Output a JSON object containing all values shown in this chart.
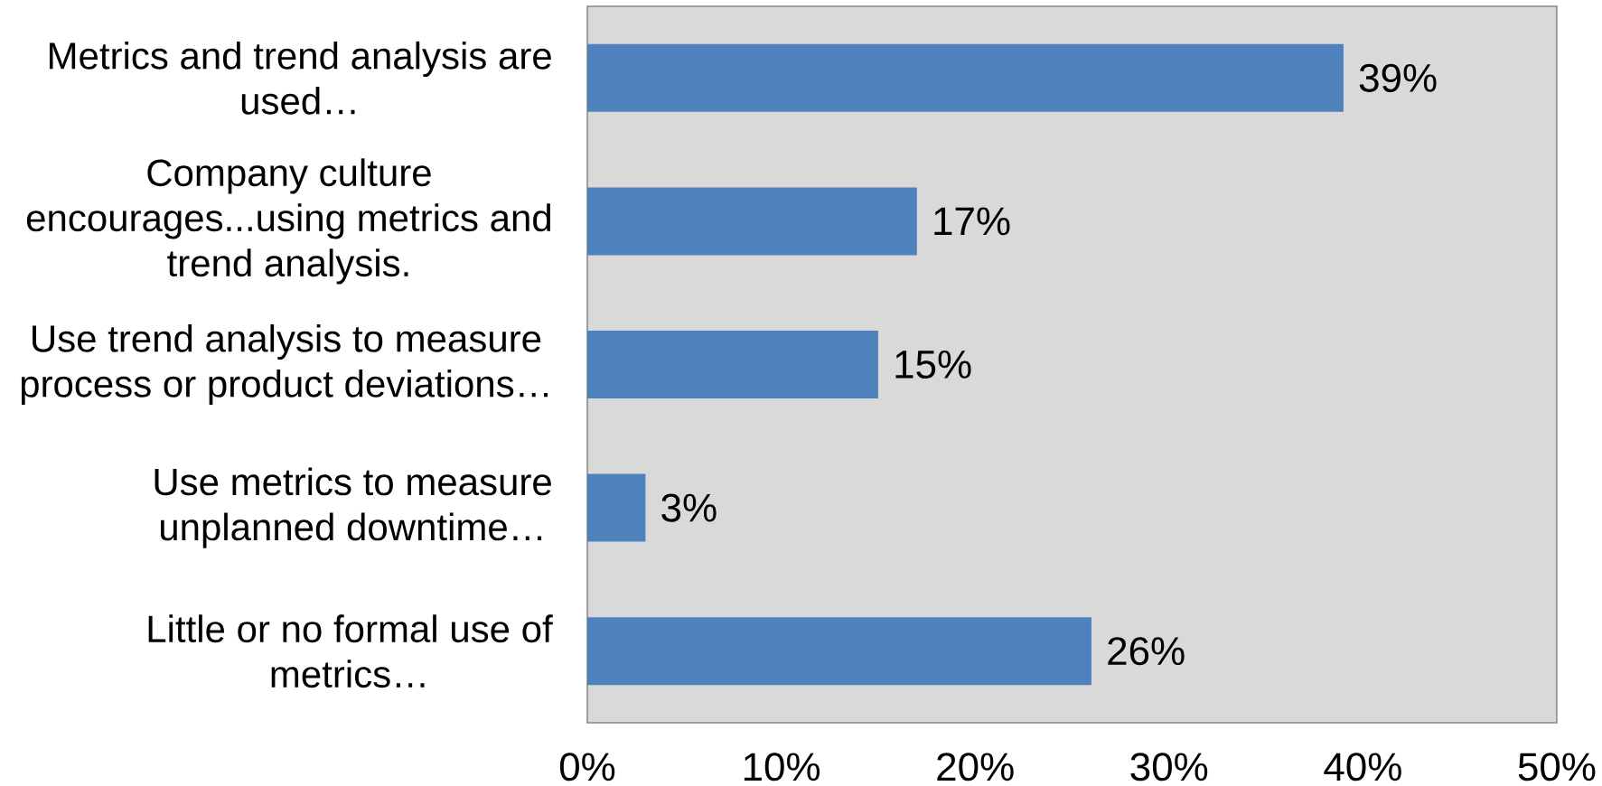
{
  "chart_data": {
    "type": "bar",
    "orientation": "horizontal",
    "categories": [
      "Metrics and trend analysis are used…",
      "Company culture encourages...using metrics and trend analysis.",
      "Use trend analysis to measure process or product deviations…",
      "Use metrics to measure unplanned downtime…",
      "Little or no formal use of metrics…"
    ],
    "values": [
      39,
      17,
      15,
      3,
      26
    ],
    "value_labels": [
      "39%",
      "17%",
      "15%",
      "3%",
      "26%"
    ],
    "color": "#4f81bd",
    "xlim": [
      0,
      50
    ],
    "xticks": [
      {
        "value": 0,
        "label": "0%"
      },
      {
        "value": 10,
        "label": "10%"
      },
      {
        "value": 20,
        "label": "20%"
      },
      {
        "value": 30,
        "label": "30%"
      },
      {
        "value": 40,
        "label": "40%"
      },
      {
        "value": 50,
        "label": "50%"
      }
    ]
  }
}
